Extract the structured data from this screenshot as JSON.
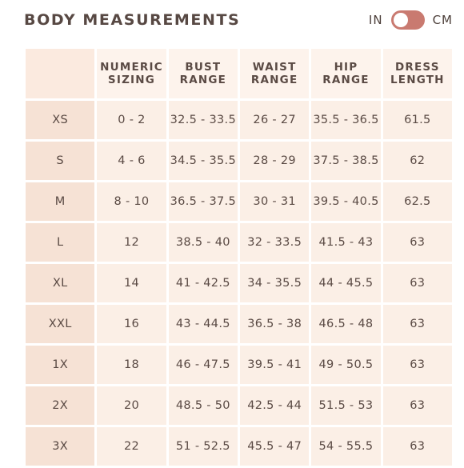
{
  "header": {
    "title": "BODY MEASUREMENTS",
    "unit_left": "IN",
    "unit_right": "CM"
  },
  "table": {
    "columns": [
      {
        "line1": "",
        "line2": ""
      },
      {
        "line1": "NUMERIC",
        "line2": "SIZING"
      },
      {
        "line1": "BUST",
        "line2": "RANGE"
      },
      {
        "line1": "WAIST",
        "line2": "RANGE"
      },
      {
        "line1": "HIP",
        "line2": "RANGE"
      },
      {
        "line1": "DRESS",
        "line2": "LENGTH"
      }
    ],
    "rows": [
      [
        "XS",
        "0 - 2",
        "32.5 - 33.5",
        "26 - 27",
        "35.5 - 36.5",
        "61.5"
      ],
      [
        "S",
        "4 - 6",
        "34.5 - 35.5",
        "28 - 29",
        "37.5 - 38.5",
        "62"
      ],
      [
        "M",
        "8 - 10",
        "36.5 - 37.5",
        "30 - 31",
        "39.5 - 40.5",
        "62.5"
      ],
      [
        "L",
        "12",
        "38.5 - 40",
        "32 - 33.5",
        "41.5 - 43",
        "63"
      ],
      [
        "XL",
        "14",
        "41 - 42.5",
        "34 - 35.5",
        "44 - 45.5",
        "63"
      ],
      [
        "XXL",
        "16",
        "43 - 44.5",
        "36.5 - 38",
        "46.5 - 48",
        "63"
      ],
      [
        "1X",
        "18",
        "46 - 47.5",
        "39.5 - 41",
        "49 - 50.5",
        "63"
      ],
      [
        "2X",
        "20",
        "48.5 - 50",
        "42.5 - 44",
        "51.5 - 53",
        "63"
      ],
      [
        "3X",
        "22",
        "51 - 52.5",
        "45.5 - 47",
        "54 - 55.5",
        "63"
      ]
    ]
  },
  "colors": {
    "toggle": "#c97a70",
    "cell": "#fbefe6",
    "size_cell": "#f6e2d5",
    "text": "#5a4a44"
  }
}
